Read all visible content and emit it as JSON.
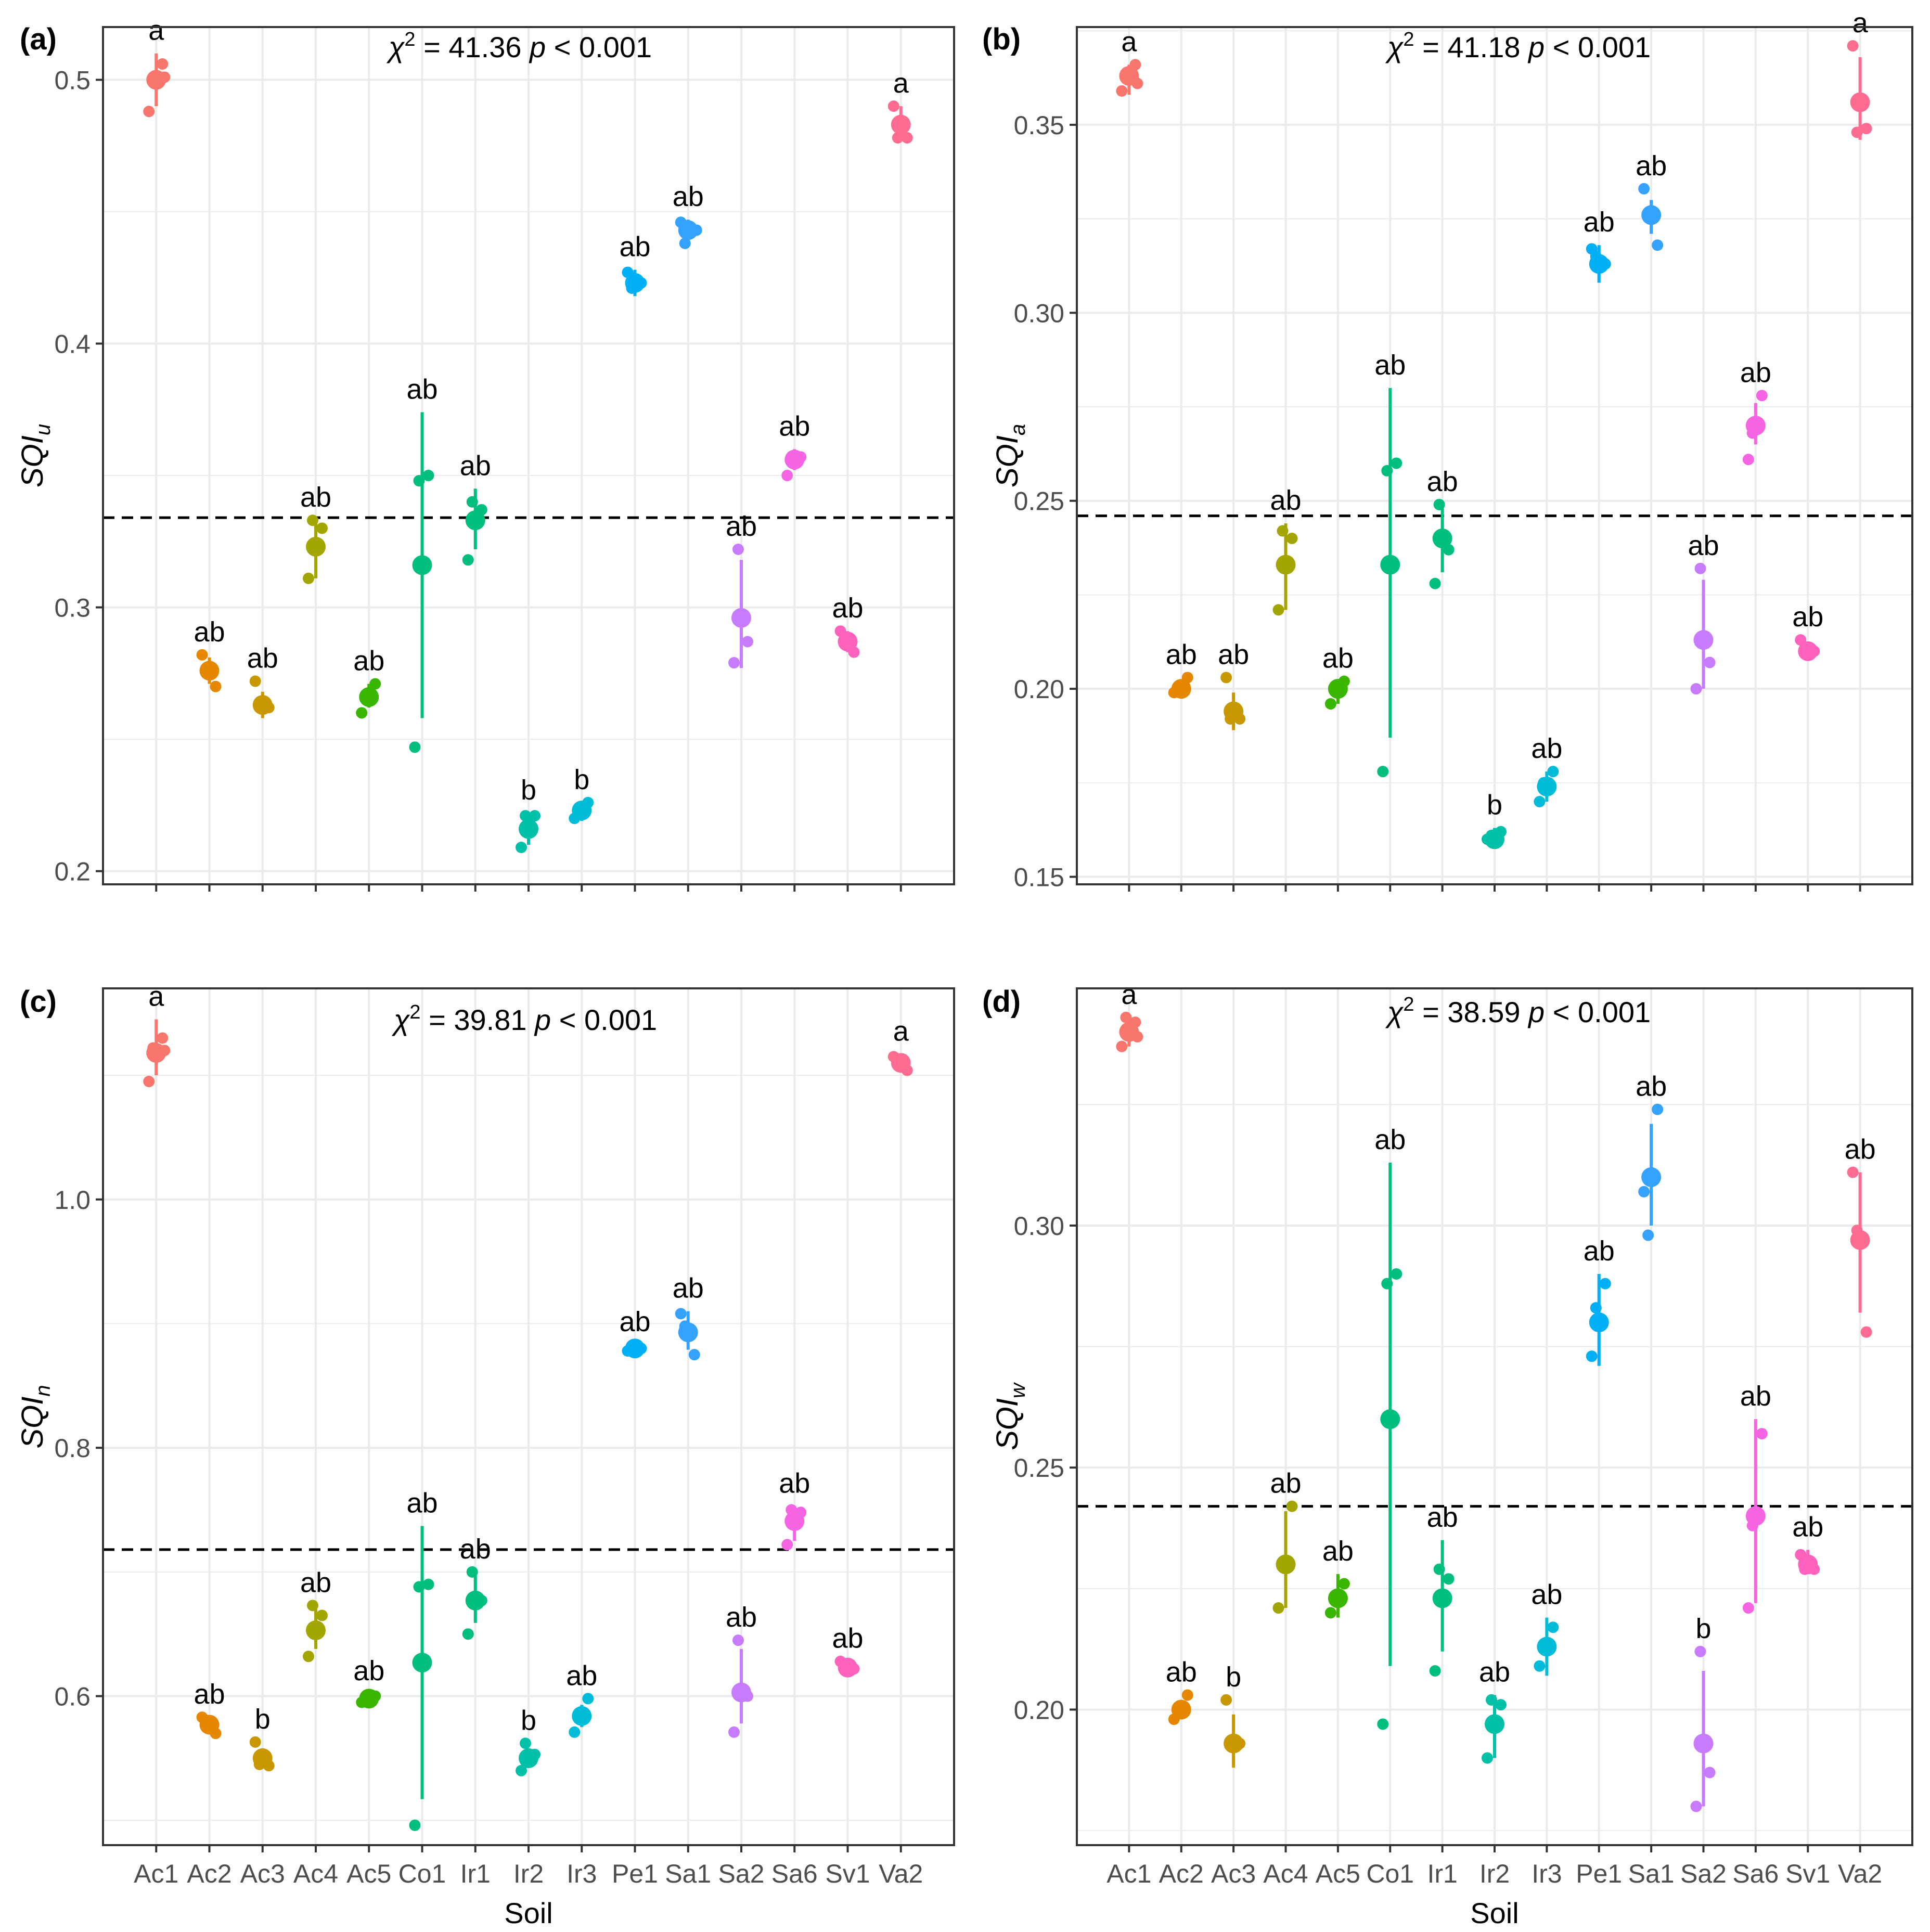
{
  "colors": {
    "Ac1": "#F8766D",
    "Ac2": "#E58700",
    "Ac3": "#C99800",
    "Ac4": "#A3A500",
    "Ac5": "#39B600",
    "Co1": "#00BF7D",
    "Ir1": "#00BF7D",
    "Ir2": "#00C1A8",
    "Ir3": "#00BCD8",
    "Pe1": "#00B0F6",
    "Sa1": "#35A2FF",
    "Sa2": "#C77CFF",
    "Sa6": "#F564E3",
    "Sv1": "#FF62BC",
    "Va2": "#FF6C91",
    "grid": "#EBEBEB",
    "axis": "#333333",
    "text": "#000000",
    "tick_text": "#4D4D4D"
  },
  "chart_data": [
    {
      "type": "scatter",
      "panel": "(a)",
      "ylabel_main": "SQI",
      "ylabel_sub": "u",
      "xlabel": "",
      "categories": [
        "Ac1",
        "Ac2",
        "Ac3",
        "Ac4",
        "Ac5",
        "Co1",
        "Ir1",
        "Ir2",
        "Ir3",
        "Pe1",
        "Sa1",
        "Sa2",
        "Sa6",
        "Sv1",
        "Va2"
      ],
      "stat_chi": "41.36",
      "stat_p": "< 0.001",
      "ylim": [
        0.195,
        0.52
      ],
      "yticks": [
        0.2,
        0.3,
        0.4,
        0.5
      ],
      "ytick_labels": [
        "0.2",
        "0.3",
        "0.4",
        "0.5"
      ],
      "hline": 0.334,
      "groups": [
        {
          "soil": "Ac1",
          "mean": 0.5,
          "lo": 0.49,
          "hi": 0.51,
          "points": [
            0.488,
            0.506,
            0.5,
            0.501
          ],
          "letter": "a"
        },
        {
          "soil": "Ac2",
          "mean": 0.276,
          "lo": 0.271,
          "hi": 0.281,
          "points": [
            0.282,
            0.27,
            0.277
          ],
          "letter": "ab"
        },
        {
          "soil": "Ac3",
          "mean": 0.263,
          "lo": 0.258,
          "hi": 0.268,
          "points": [
            0.272,
            0.262,
            0.262
          ],
          "letter": "ab"
        },
        {
          "soil": "Ac4",
          "mean": 0.323,
          "lo": 0.311,
          "hi": 0.333,
          "points": [
            0.311,
            0.33,
            0.333
          ],
          "letter": "ab"
        },
        {
          "soil": "Ac5",
          "mean": 0.266,
          "lo": 0.262,
          "hi": 0.271,
          "points": [
            0.26,
            0.271,
            0.266
          ],
          "letter": "ab"
        },
        {
          "soil": "Co1",
          "mean": 0.316,
          "lo": 0.258,
          "hi": 0.374,
          "points": [
            0.247,
            0.35,
            0.348
          ],
          "letter": "ab"
        },
        {
          "soil": "Ir1",
          "mean": 0.333,
          "lo": 0.322,
          "hi": 0.345,
          "points": [
            0.318,
            0.337,
            0.34
          ],
          "letter": "ab"
        },
        {
          "soil": "Ir2",
          "mean": 0.216,
          "lo": 0.21,
          "hi": 0.222,
          "points": [
            0.209,
            0.221,
            0.221
          ],
          "letter": "b"
        },
        {
          "soil": "Ir3",
          "mean": 0.223,
          "lo": 0.219,
          "hi": 0.226,
          "points": [
            0.22,
            0.226,
            0.223
          ],
          "letter": "b"
        },
        {
          "soil": "Pe1",
          "mean": 0.423,
          "lo": 0.418,
          "hi": 0.428,
          "points": [
            0.427,
            0.423,
            0.421
          ],
          "letter": "ab"
        },
        {
          "soil": "Sa1",
          "mean": 0.443,
          "lo": 0.439,
          "hi": 0.447,
          "points": [
            0.446,
            0.443,
            0.438,
            0.443
          ],
          "letter": "ab"
        },
        {
          "soil": "Sa2",
          "mean": 0.296,
          "lo": 0.277,
          "hi": 0.318,
          "points": [
            0.279,
            0.287,
            0.322
          ],
          "letter": "ab"
        },
        {
          "soil": "Sa6",
          "mean": 0.356,
          "lo": 0.352,
          "hi": 0.36,
          "points": [
            0.35,
            0.357,
            0.357
          ],
          "letter": "ab"
        },
        {
          "soil": "Sv1",
          "mean": 0.287,
          "lo": 0.283,
          "hi": 0.291,
          "points": [
            0.291,
            0.283,
            0.287
          ],
          "letter": "ab"
        },
        {
          "soil": "Va2",
          "mean": 0.483,
          "lo": 0.477,
          "hi": 0.49,
          "points": [
            0.49,
            0.478,
            0.478
          ],
          "letter": "a"
        }
      ]
    },
    {
      "type": "scatter",
      "panel": "(b)",
      "ylabel_main": "SQI",
      "ylabel_sub": "a",
      "xlabel": "",
      "categories": [
        "Ac1",
        "Ac2",
        "Ac3",
        "Ac4",
        "Ac5",
        "Co1",
        "Ir1",
        "Ir2",
        "Ir3",
        "Pe1",
        "Sa1",
        "Sa2",
        "Sa6",
        "Sv1",
        "Va2"
      ],
      "stat_chi": "41.18",
      "stat_p": "< 0.001",
      "ylim": [
        0.148,
        0.376
      ],
      "yticks": [
        0.15,
        0.2,
        0.25,
        0.3,
        0.35
      ],
      "ytick_labels": [
        "0.15",
        "0.20",
        "0.25",
        "0.30",
        "0.35"
      ],
      "hline": 0.246,
      "groups": [
        {
          "soil": "Ac1",
          "mean": 0.363,
          "lo": 0.358,
          "hi": 0.366,
          "points": [
            0.359,
            0.366,
            0.363,
            0.361
          ],
          "letter": "a"
        },
        {
          "soil": "Ac2",
          "mean": 0.2,
          "lo": 0.198,
          "hi": 0.202,
          "points": [
            0.199,
            0.203,
            0.2
          ],
          "letter": "ab"
        },
        {
          "soil": "Ac3",
          "mean": 0.194,
          "lo": 0.189,
          "hi": 0.199,
          "points": [
            0.203,
            0.192,
            0.192
          ],
          "letter": "ab"
        },
        {
          "soil": "Ac4",
          "mean": 0.233,
          "lo": 0.221,
          "hi": 0.244,
          "points": [
            0.221,
            0.24,
            0.242
          ],
          "letter": "ab"
        },
        {
          "soil": "Ac5",
          "mean": 0.2,
          "lo": 0.196,
          "hi": 0.202,
          "points": [
            0.196,
            0.202,
            0.2
          ],
          "letter": "ab"
        },
        {
          "soil": "Co1",
          "mean": 0.233,
          "lo": 0.187,
          "hi": 0.28,
          "points": [
            0.178,
            0.26,
            0.258
          ],
          "letter": "ab"
        },
        {
          "soil": "Ir1",
          "mean": 0.24,
          "lo": 0.231,
          "hi": 0.248,
          "points": [
            0.228,
            0.237,
            0.249
          ],
          "letter": "ab"
        },
        {
          "soil": "Ir2",
          "mean": 0.16,
          "lo": 0.158,
          "hi": 0.163,
          "points": [
            0.16,
            0.162,
            0.161
          ],
          "letter": "b"
        },
        {
          "soil": "Ir3",
          "mean": 0.174,
          "lo": 0.17,
          "hi": 0.178,
          "points": [
            0.17,
            0.178,
            0.175
          ],
          "letter": "ab"
        },
        {
          "soil": "Pe1",
          "mean": 0.313,
          "lo": 0.308,
          "hi": 0.318,
          "points": [
            0.317,
            0.313,
            0.315
          ],
          "letter": "ab"
        },
        {
          "soil": "Sa1",
          "mean": 0.326,
          "lo": 0.321,
          "hi": 0.33,
          "points": [
            0.333,
            0.318,
            0.326
          ],
          "letter": "ab"
        },
        {
          "soil": "Sa2",
          "mean": 0.213,
          "lo": 0.2,
          "hi": 0.229,
          "points": [
            0.2,
            0.207,
            0.232
          ],
          "letter": "ab"
        },
        {
          "soil": "Sa6",
          "mean": 0.27,
          "lo": 0.265,
          "hi": 0.276,
          "points": [
            0.261,
            0.278,
            0.268
          ],
          "letter": "ab"
        },
        {
          "soil": "Sv1",
          "mean": 0.21,
          "lo": 0.209,
          "hi": 0.212,
          "points": [
            0.213,
            0.21,
            0.21
          ],
          "letter": "ab"
        },
        {
          "soil": "Va2",
          "mean": 0.356,
          "lo": 0.346,
          "hi": 0.368,
          "points": [
            0.371,
            0.349,
            0.348
          ],
          "letter": "a"
        }
      ]
    },
    {
      "type": "scatter",
      "panel": "(c)",
      "ylabel_main": "SQI",
      "ylabel_sub": "n",
      "xlabel": "Soil",
      "categories": [
        "Ac1",
        "Ac2",
        "Ac3",
        "Ac4",
        "Ac5",
        "Co1",
        "Ir1",
        "Ir2",
        "Ir3",
        "Pe1",
        "Sa1",
        "Sa2",
        "Sa6",
        "Sv1",
        "Va2"
      ],
      "stat_chi": "39.81",
      "stat_p": "< 0.001",
      "ylim": [
        0.48,
        1.17
      ],
      "yticks": [
        0.6,
        0.8,
        1.0
      ],
      "ytick_labels": [
        "0.6",
        "0.8",
        "1.0"
      ],
      "hline": 0.718,
      "groups": [
        {
          "soil": "Ac1",
          "mean": 1.118,
          "lo": 1.1,
          "hi": 1.145,
          "points": [
            1.095,
            1.13,
            1.122,
            1.12
          ],
          "letter": "a"
        },
        {
          "soil": "Ac2",
          "mean": 0.577,
          "lo": 0.572,
          "hi": 0.582,
          "points": [
            0.583,
            0.57,
            0.578
          ],
          "letter": "ab"
        },
        {
          "soil": "Ac3",
          "mean": 0.55,
          "lo": 0.544,
          "hi": 0.558,
          "points": [
            0.563,
            0.544,
            0.545
          ],
          "letter": "b"
        },
        {
          "soil": "Ac4",
          "mean": 0.653,
          "lo": 0.638,
          "hi": 0.67,
          "points": [
            0.632,
            0.665,
            0.673
          ],
          "letter": "ab"
        },
        {
          "soil": "Ac5",
          "mean": 0.598,
          "lo": 0.594,
          "hi": 0.602,
          "points": [
            0.595,
            0.6,
            0.598
          ],
          "letter": "ab"
        },
        {
          "soil": "Co1",
          "mean": 0.627,
          "lo": 0.517,
          "hi": 0.737,
          "points": [
            0.496,
            0.69,
            0.688
          ],
          "letter": "ab"
        },
        {
          "soil": "Ir1",
          "mean": 0.677,
          "lo": 0.659,
          "hi": 0.697,
          "points": [
            0.65,
            0.677,
            0.7
          ],
          "letter": "ab"
        },
        {
          "soil": "Ir2",
          "mean": 0.55,
          "lo": 0.543,
          "hi": 0.558,
          "points": [
            0.54,
            0.553,
            0.562
          ],
          "letter": "b"
        },
        {
          "soil": "Ir3",
          "mean": 0.584,
          "lo": 0.575,
          "hi": 0.593,
          "points": [
            0.571,
            0.598,
            0.583
          ],
          "letter": "ab"
        },
        {
          "soil": "Pe1",
          "mean": 0.88,
          "lo": 0.876,
          "hi": 0.883,
          "points": [
            0.878,
            0.88,
            0.882
          ],
          "letter": "ab"
        },
        {
          "soil": "Sa1",
          "mean": 0.893,
          "lo": 0.879,
          "hi": 0.91,
          "points": [
            0.908,
            0.875,
            0.898
          ],
          "letter": "ab"
        },
        {
          "soil": "Sa2",
          "mean": 0.603,
          "lo": 0.578,
          "hi": 0.638,
          "points": [
            0.571,
            0.6,
            0.645
          ],
          "letter": "ab"
        },
        {
          "soil": "Sa6",
          "mean": 0.741,
          "lo": 0.725,
          "hi": 0.753,
          "points": [
            0.722,
            0.748,
            0.75
          ],
          "letter": "ab"
        },
        {
          "soil": "Sv1",
          "mean": 0.623,
          "lo": 0.62,
          "hi": 0.627,
          "points": [
            0.628,
            0.622,
            0.623
          ],
          "letter": "ab"
        },
        {
          "soil": "Va2",
          "mean": 1.11,
          "lo": 1.104,
          "hi": 1.117,
          "points": [
            1.115,
            1.104,
            1.11
          ],
          "letter": "a"
        }
      ]
    },
    {
      "type": "scatter",
      "panel": "(d)",
      "ylabel_main": "SQI",
      "ylabel_sub": "w",
      "xlabel": "Soil",
      "categories": [
        "Ac1",
        "Ac2",
        "Ac3",
        "Ac4",
        "Ac5",
        "Co1",
        "Ir1",
        "Ir2",
        "Ir3",
        "Pe1",
        "Sa1",
        "Sa2",
        "Sa6",
        "Sv1",
        "Va2"
      ],
      "stat_chi": "38.59",
      "stat_p": "< 0.001",
      "ylim": [
        0.172,
        0.349
      ],
      "yticks": [
        0.2,
        0.25,
        0.3
      ],
      "ytick_labels": [
        "0.20",
        "0.25",
        "0.30"
      ],
      "hline": 0.242,
      "groups": [
        {
          "soil": "Ac1",
          "mean": 0.34,
          "lo": 0.337,
          "hi": 0.343,
          "points": [
            0.337,
            0.342,
            0.343,
            0.339
          ],
          "letter": "a"
        },
        {
          "soil": "Ac2",
          "mean": 0.2,
          "lo": 0.198,
          "hi": 0.202,
          "points": [
            0.198,
            0.203,
            0.2
          ],
          "letter": "ab"
        },
        {
          "soil": "Ac3",
          "mean": 0.193,
          "lo": 0.188,
          "hi": 0.199,
          "points": [
            0.202,
            0.193,
            0.193
          ],
          "letter": "b"
        },
        {
          "soil": "Ac4",
          "mean": 0.23,
          "lo": 0.221,
          "hi": 0.241,
          "points": [
            0.221,
            0.242,
            0.23
          ],
          "letter": "ab"
        },
        {
          "soil": "Ac5",
          "mean": 0.223,
          "lo": 0.219,
          "hi": 0.228,
          "points": [
            0.22,
            0.226,
            0.223
          ],
          "letter": "ab"
        },
        {
          "soil": "Co1",
          "mean": 0.26,
          "lo": 0.209,
          "hi": 0.313,
          "points": [
            0.197,
            0.29,
            0.288
          ],
          "letter": "ab"
        },
        {
          "soil": "Ir1",
          "mean": 0.223,
          "lo": 0.212,
          "hi": 0.235,
          "points": [
            0.208,
            0.227,
            0.229
          ],
          "letter": "ab"
        },
        {
          "soil": "Ir2",
          "mean": 0.197,
          "lo": 0.19,
          "hi": 0.203,
          "points": [
            0.19,
            0.201,
            0.202
          ],
          "letter": "ab"
        },
        {
          "soil": "Ir3",
          "mean": 0.213,
          "lo": 0.207,
          "hi": 0.219,
          "points": [
            0.209,
            0.217,
            0.213
          ],
          "letter": "ab"
        },
        {
          "soil": "Pe1",
          "mean": 0.28,
          "lo": 0.271,
          "hi": 0.29,
          "points": [
            0.273,
            0.288,
            0.283
          ],
          "letter": "ab"
        },
        {
          "soil": "Sa1",
          "mean": 0.31,
          "lo": 0.3,
          "hi": 0.321,
          "points": [
            0.307,
            0.324,
            0.298
          ],
          "letter": "ab"
        },
        {
          "soil": "Sa2",
          "mean": 0.193,
          "lo": 0.18,
          "hi": 0.208,
          "points": [
            0.18,
            0.187,
            0.212
          ],
          "letter": "b"
        },
        {
          "soil": "Sa6",
          "mean": 0.24,
          "lo": 0.222,
          "hi": 0.26,
          "points": [
            0.221,
            0.257,
            0.238
          ],
          "letter": "ab"
        },
        {
          "soil": "Sv1",
          "mean": 0.23,
          "lo": 0.228,
          "hi": 0.233,
          "points": [
            0.232,
            0.229,
            0.229
          ],
          "letter": "ab"
        },
        {
          "soil": "Va2",
          "mean": 0.297,
          "lo": 0.282,
          "hi": 0.311,
          "points": [
            0.311,
            0.278,
            0.299
          ],
          "letter": "ab"
        }
      ]
    }
  ]
}
